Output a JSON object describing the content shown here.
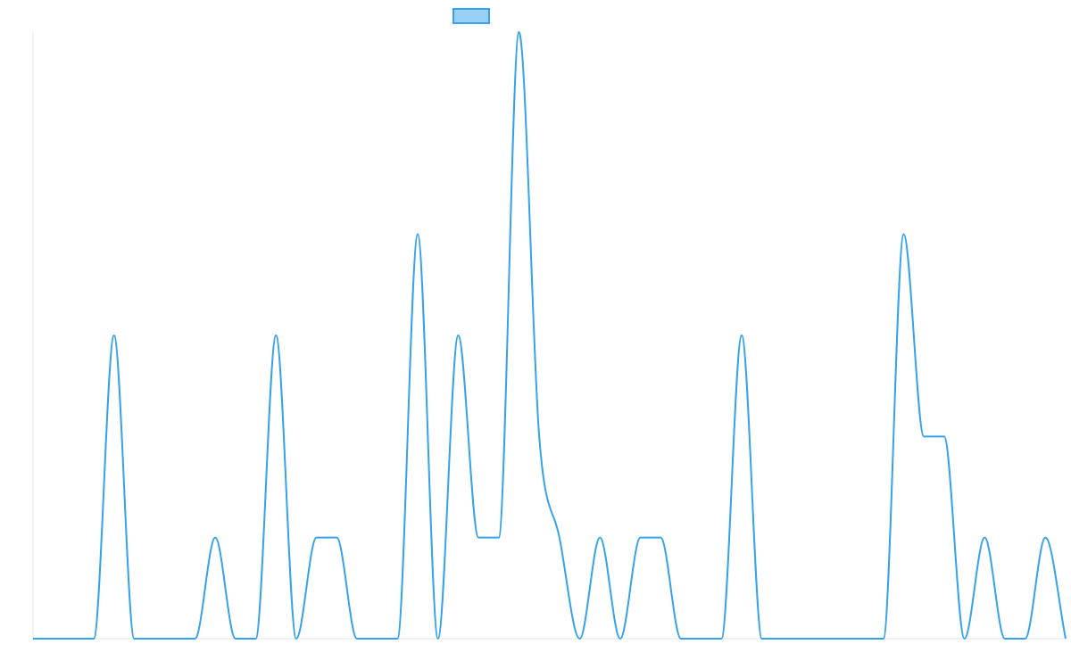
{
  "chart_data": {
    "type": "line",
    "title": "",
    "xlabel": "",
    "ylabel": "",
    "legend": {
      "placement": "top-center",
      "items": [
        {
          "label": "",
          "color": "#36a2eb",
          "fill": "#9ad0f5"
        }
      ]
    },
    "series": [
      {
        "color": "#36a2eb",
        "values": [
          0,
          0,
          0,
          0,
          3,
          0,
          0,
          0,
          0,
          1,
          0,
          0,
          3,
          0,
          1,
          1,
          0,
          0,
          0,
          4,
          0,
          3,
          1,
          1,
          6,
          2,
          1,
          0,
          1,
          0,
          1,
          1,
          0,
          0,
          0,
          3,
          0,
          0,
          0,
          0,
          0,
          0,
          0,
          4,
          2,
          2,
          0,
          1,
          0,
          0,
          1,
          0
        ]
      }
    ],
    "ylim": [
      0,
      6
    ],
    "grid": false
  }
}
